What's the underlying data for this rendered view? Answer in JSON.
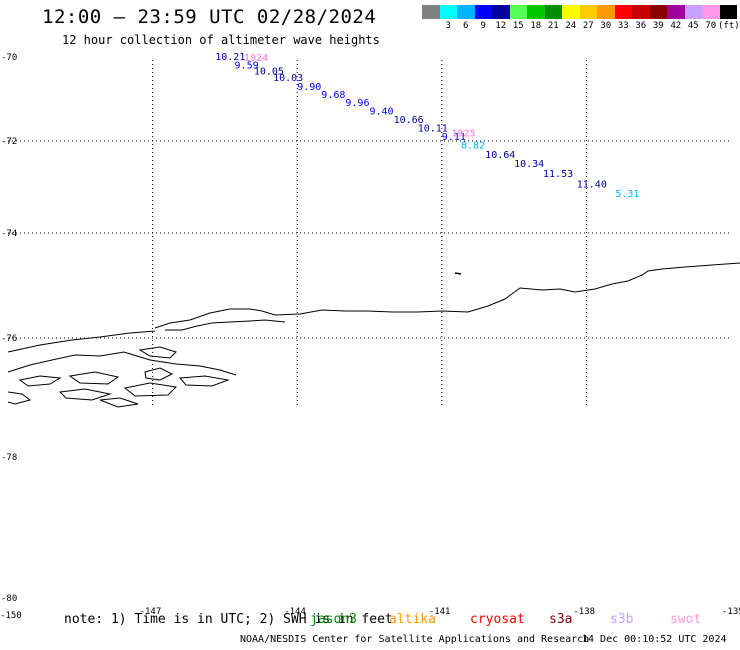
{
  "header": {
    "title": "12:00 – 23:59 UTC 02/28/2024",
    "subtitle": "12 hour collection of altimeter wave heights"
  },
  "color_scale": {
    "unit": "(ft)",
    "swatches": [
      {
        "color": "#808080",
        "label": ""
      },
      {
        "color": "#00ffff",
        "label": "3"
      },
      {
        "color": "#00b4ff",
        "label": "6"
      },
      {
        "color": "#0000ff",
        "label": "9"
      },
      {
        "color": "#0000a0",
        "label": "12"
      },
      {
        "color": "#55ff55",
        "label": "15"
      },
      {
        "color": "#00c800",
        "label": "18"
      },
      {
        "color": "#008c00",
        "label": "21"
      },
      {
        "color": "#ffff00",
        "label": "24"
      },
      {
        "color": "#ffcc00",
        "label": "27"
      },
      {
        "color": "#ff9900",
        "label": "30"
      },
      {
        "color": "#ff0000",
        "label": "33"
      },
      {
        "color": "#c80000",
        "label": "36"
      },
      {
        "color": "#8c0000",
        "label": "39"
      },
      {
        "color": "#a000a0",
        "label": "42"
      },
      {
        "color": "#c8a0ff",
        "label": "45"
      },
      {
        "color": "#ff96e6",
        "label": "70"
      },
      {
        "color": "#000000",
        "label": ""
      }
    ]
  },
  "map": {
    "lat_labels": [
      "-70",
      "-72",
      "-74",
      "-76",
      "-78",
      "-80"
    ],
    "lon_labels": [
      "-150",
      "-147",
      "-144",
      "-141",
      "-138",
      "-135"
    ]
  },
  "wave_heights": [
    {
      "value": "10.21",
      "lon": -145.7,
      "lat": -70.0,
      "color": "#0000a0"
    },
    {
      "value": "9.59",
      "lon": -145.3,
      "lat": -70.2,
      "color": "#0000ff"
    },
    {
      "value": "10.05",
      "lon": -144.9,
      "lat": -70.35,
      "color": "#0000a0"
    },
    {
      "value": "10.03",
      "lon": -144.5,
      "lat": -70.5,
      "color": "#0000a0"
    },
    {
      "value": "9.90",
      "lon": -144.0,
      "lat": -70.72,
      "color": "#0000ff"
    },
    {
      "value": "9.68",
      "lon": -143.5,
      "lat": -70.9,
      "color": "#0000ff"
    },
    {
      "value": "9.96",
      "lon": -143.0,
      "lat": -71.1,
      "color": "#0000ff"
    },
    {
      "value": "9.40",
      "lon": -142.5,
      "lat": -71.3,
      "color": "#0000ff"
    },
    {
      "value": "10.66",
      "lon": -142.0,
      "lat": -71.5,
      "color": "#0000a0"
    },
    {
      "value": "10.11",
      "lon": -141.5,
      "lat": -71.7,
      "color": "#0000a0"
    },
    {
      "value": "9.11",
      "lon": -141.0,
      "lat": -71.9,
      "color": "#0000ff"
    },
    {
      "value": "8.82",
      "lon": -140.6,
      "lat": -72.1,
      "color": "#00b4ff"
    },
    {
      "value": "10.64",
      "lon": -140.1,
      "lat": -72.3,
      "color": "#0000a0"
    },
    {
      "value": "10.34",
      "lon": -139.5,
      "lat": -72.5,
      "color": "#0000a0"
    },
    {
      "value": "11.53",
      "lon": -138.9,
      "lat": -72.72,
      "color": "#0000a0"
    },
    {
      "value": "11.40",
      "lon": -138.2,
      "lat": -72.95,
      "color": "#0000a0"
    },
    {
      "value": "5.31",
      "lon": -137.4,
      "lat": -73.15,
      "color": "#00b4ff"
    }
  ],
  "time_labels": [
    {
      "text": "1924",
      "lon": -145.1,
      "lat": -70.0,
      "color": "#ff96e6"
    },
    {
      "text": "1925",
      "lon": -140.8,
      "lat": -71.8,
      "color": "#ff96e6"
    }
  ],
  "footer": {
    "note": "note: 1) Time is in UTC; 2) SWH is in feet",
    "satellites": [
      {
        "name": "jason3",
        "color": "#008c00"
      },
      {
        "name": "altika",
        "color": "#ff9900"
      },
      {
        "name": "cryosat",
        "color": "#ff0000"
      },
      {
        "name": "s3a",
        "color": "#8c0000"
      },
      {
        "name": "s3b",
        "color": "#c8a0ff"
      },
      {
        "name": "swot",
        "color": "#ff96e6"
      }
    ],
    "credit": "NOAA/NESDIS Center for Satellite Applications and Research",
    "timestamp": "14 Dec 00:10:52 UTC 2024"
  }
}
